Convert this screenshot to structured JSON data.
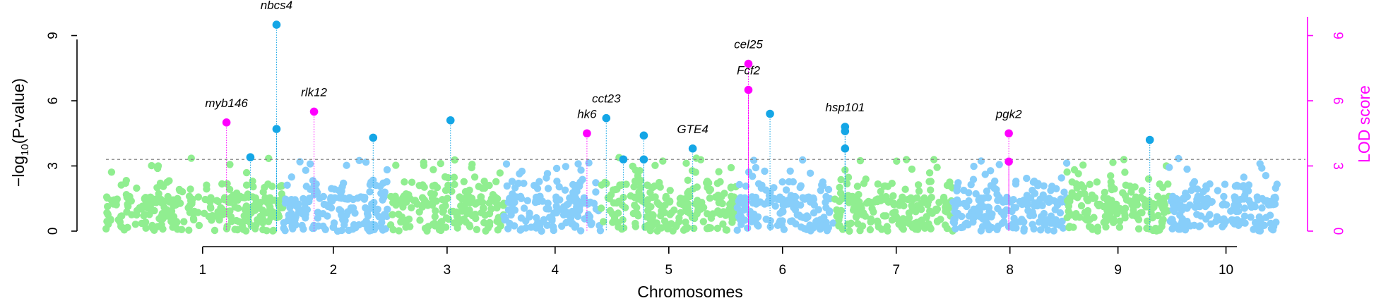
{
  "chart_data": {
    "type": "scatter",
    "subtype": "manhattan",
    "xlabel": "Chromosomes",
    "ylabel": "-log10(P-value)",
    "ylabel_secondary": "LOD score",
    "ylim": [
      0,
      9.6
    ],
    "ylim_secondary": [
      0,
      9.6
    ],
    "y_ticks": [
      "0",
      "3",
      "6",
      "9"
    ],
    "y_ticks_secondary": [
      "0",
      "3",
      "6",
      "9"
    ],
    "threshold": 3.3,
    "colors": {
      "green": "#90ee90",
      "blue": "#87cefa",
      "gwas_hit": "#14a6e6",
      "lod_hit": "#ff00ff",
      "threshold": "#888888"
    },
    "chromosomes": [
      {
        "label": "1",
        "start": 0,
        "end": 1.56,
        "color": "green",
        "tick": 0.85
      },
      {
        "label": "2",
        "start": 1.56,
        "end": 2.5,
        "color": "blue",
        "tick": 2.0
      },
      {
        "label": "3",
        "start": 2.5,
        "end": 3.5,
        "color": "green",
        "tick": 3.0
      },
      {
        "label": "4",
        "start": 3.5,
        "end": 4.35,
        "color": "blue",
        "tick": 3.95
      },
      {
        "label": "5",
        "start": 4.35,
        "end": 5.55,
        "color": "green",
        "tick": 4.95
      },
      {
        "label": "6",
        "start": 5.55,
        "end": 6.4,
        "color": "blue",
        "tick": 5.95
      },
      {
        "label": "7",
        "start": 6.4,
        "end": 7.45,
        "color": "green",
        "tick": 6.95
      },
      {
        "label": "8",
        "start": 7.45,
        "end": 8.45,
        "color": "blue",
        "tick": 7.95
      },
      {
        "label": "9",
        "start": 8.45,
        "end": 9.35,
        "color": "green",
        "tick": 8.9
      },
      {
        "label": "10",
        "start": 9.35,
        "end": 10.3,
        "color": "blue",
        "tick": 9.85
      }
    ],
    "gwas_hits": [
      {
        "x": 1.27,
        "y": 3.4
      },
      {
        "x": 1.5,
        "y": 9.5
      },
      {
        "x": 1.5,
        "y": 4.7
      },
      {
        "x": 2.35,
        "y": 4.3
      },
      {
        "x": 3.03,
        "y": 5.1
      },
      {
        "x": 4.4,
        "y": 5.2
      },
      {
        "x": 4.55,
        "y": 3.3
      },
      {
        "x": 4.73,
        "y": 4.4
      },
      {
        "x": 4.73,
        "y": 3.3
      },
      {
        "x": 5.16,
        "y": 3.8
      },
      {
        "x": 5.84,
        "y": 5.4
      },
      {
        "x": 6.5,
        "y": 4.8
      },
      {
        "x": 6.5,
        "y": 4.6
      },
      {
        "x": 6.5,
        "y": 3.8
      },
      {
        "x": 9.18,
        "y": 4.2
      }
    ],
    "lod_hits": [
      {
        "x": 1.06,
        "y": 5.0
      },
      {
        "x": 1.83,
        "y": 5.5
      },
      {
        "x": 4.23,
        "y": 4.5
      },
      {
        "x": 5.65,
        "y": 7.7
      },
      {
        "x": 5.65,
        "y": 6.5
      },
      {
        "x": 7.94,
        "y": 3.2
      },
      {
        "x": 7.94,
        "y": 4.5
      }
    ],
    "annotations": [
      {
        "text": "nbcs4",
        "x": 1.5,
        "y": 9.5
      },
      {
        "text": "myb146",
        "x": 1.06,
        "y": 5.0
      },
      {
        "text": "rlk12",
        "x": 1.83,
        "y": 5.5
      },
      {
        "text": "hk6",
        "x": 4.23,
        "y": 4.5
      },
      {
        "text": "cct23",
        "x": 4.4,
        "y": 5.2
      },
      {
        "text": "GTE4",
        "x": 5.16,
        "y": 3.8
      },
      {
        "text": "cel25",
        "x": 5.65,
        "y": 7.7
      },
      {
        "text": "Fcf2",
        "x": 5.65,
        "y": 6.5
      },
      {
        "text": "hsp101",
        "x": 6.5,
        "y": 4.8
      },
      {
        "text": "pgk2",
        "x": 7.94,
        "y": 4.5
      }
    ]
  }
}
